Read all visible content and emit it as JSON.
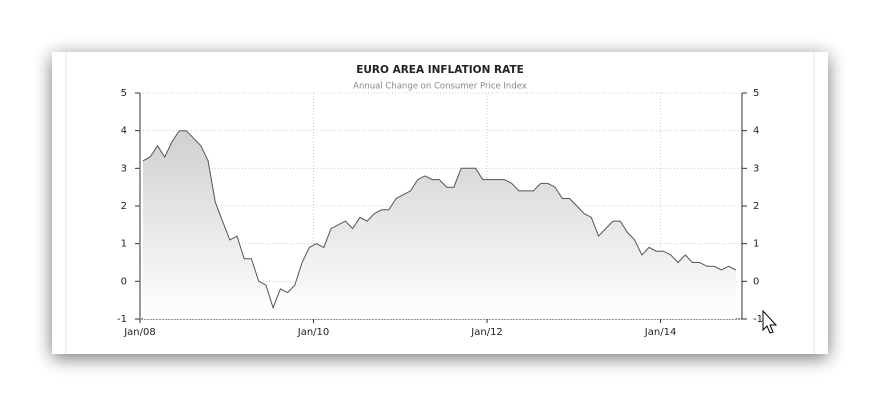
{
  "chart_data": {
    "type": "area",
    "title": "EURO AREA INFLATION RATE",
    "subtitle": "Annual Change on Consumer Price Index",
    "categories": [
      "Jan/08",
      null,
      null,
      null,
      null,
      null,
      null,
      null,
      null,
      null,
      null,
      null,
      null,
      null,
      null,
      null,
      null,
      null,
      null,
      null,
      null,
      null,
      null,
      null,
      "Jan/10",
      null,
      null,
      null,
      null,
      null,
      null,
      null,
      null,
      null,
      null,
      null,
      null,
      null,
      null,
      null,
      null,
      null,
      null,
      null,
      null,
      null,
      null,
      null,
      "Jan/12",
      null,
      null,
      null,
      null,
      null,
      null,
      null,
      null,
      null,
      null,
      null,
      null,
      null,
      null,
      null,
      null,
      null,
      null,
      null,
      null,
      null,
      null,
      null,
      "Jan/14",
      null,
      null,
      null,
      null,
      null,
      null,
      null,
      null,
      null,
      null
    ],
    "values": [
      3.2,
      3.3,
      3.6,
      3.3,
      3.7,
      4.0,
      4.0,
      3.8,
      3.6,
      3.2,
      2.1,
      1.6,
      1.1,
      1.2,
      0.6,
      0.6,
      0.0,
      -0.1,
      -0.7,
      -0.2,
      -0.3,
      -0.1,
      0.5,
      0.9,
      1.0,
      0.9,
      1.4,
      1.5,
      1.6,
      1.4,
      1.7,
      1.6,
      1.8,
      1.9,
      1.9,
      2.2,
      2.3,
      2.4,
      2.7,
      2.8,
      2.7,
      2.7,
      2.5,
      2.5,
      3.0,
      3.0,
      3.0,
      2.7,
      2.7,
      2.7,
      2.7,
      2.6,
      2.4,
      2.4,
      2.4,
      2.6,
      2.6,
      2.5,
      2.2,
      2.2,
      2.0,
      1.8,
      1.7,
      1.2,
      1.4,
      1.6,
      1.6,
      1.3,
      1.1,
      0.7,
      0.9,
      0.8,
      0.8,
      0.7,
      0.5,
      0.7,
      0.5,
      0.5,
      0.4,
      0.4,
      0.3,
      0.4,
      0.3
    ],
    "color": "#555555",
    "ylim": [
      -1,
      5
    ],
    "yticks": [
      -1,
      0,
      1,
      2,
      3,
      4,
      5
    ],
    "y2lim": [
      -1,
      5
    ],
    "y2ticks": [
      -1,
      0,
      1,
      2,
      3,
      4,
      5
    ],
    "grid": true
  }
}
